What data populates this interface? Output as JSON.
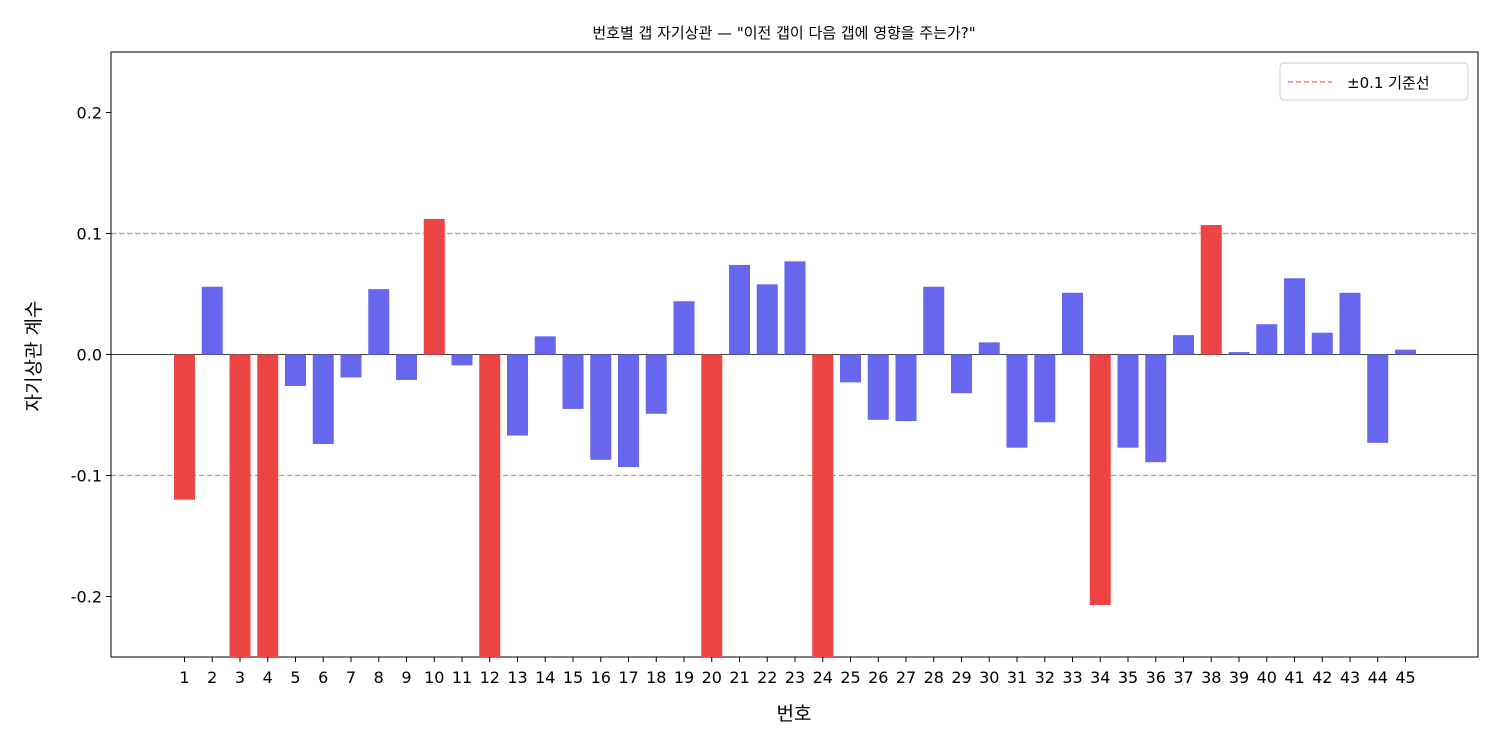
{
  "chart_data": {
    "type": "bar",
    "title": "번호별 갭 자기상관 — \"이전 갭이 다음 갭에 영향을 주는가?\"",
    "xlabel": "번호",
    "ylabel": "자기상관 계수",
    "ylim": [
      -0.25,
      0.25
    ],
    "yticks": [
      -0.2,
      -0.1,
      0.0,
      0.1,
      0.2
    ],
    "ytick_labels": [
      "-0.2",
      "-0.1",
      "0.0",
      "0.1",
      "0.2"
    ],
    "categories": [
      "1",
      "2",
      "3",
      "4",
      "5",
      "6",
      "7",
      "8",
      "9",
      "10",
      "11",
      "12",
      "13",
      "14",
      "15",
      "16",
      "17",
      "18",
      "19",
      "20",
      "21",
      "22",
      "23",
      "24",
      "25",
      "26",
      "27",
      "28",
      "29",
      "30",
      "31",
      "32",
      "33",
      "34",
      "35",
      "36",
      "37",
      "38",
      "39",
      "40",
      "41",
      "42",
      "43",
      "44",
      "45"
    ],
    "values": [
      -0.12,
      0.056,
      -0.3,
      -0.3,
      -0.026,
      -0.074,
      -0.019,
      0.054,
      -0.021,
      0.112,
      -0.009,
      -0.3,
      -0.067,
      0.015,
      -0.045,
      -0.087,
      -0.093,
      -0.049,
      0.044,
      -0.3,
      0.074,
      0.058,
      0.077,
      -0.3,
      -0.023,
      -0.054,
      -0.055,
      0.056,
      -0.032,
      0.01,
      -0.077,
      -0.056,
      0.051,
      -0.207,
      -0.077,
      -0.089,
      0.016,
      0.107,
      0.002,
      0.025,
      0.063,
      0.018,
      0.051,
      -0.073,
      0.004
    ],
    "threshold": 0.1,
    "legend": {
      "label": "±0.1 기준선",
      "position": "upper-right"
    },
    "colors": {
      "normal": "#6666ee",
      "significant": "#ee4444",
      "threshold": "#ff7777",
      "zero_line": "#000000"
    },
    "grid": false
  }
}
